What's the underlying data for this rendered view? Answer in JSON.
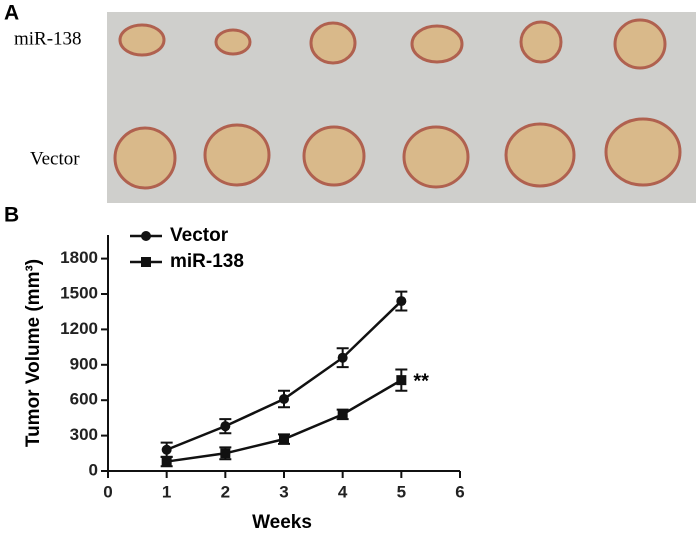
{
  "panel_a": {
    "label": "A",
    "row_labels": [
      "miR-138",
      "Vector"
    ]
  },
  "chart_data": {
    "type": "line",
    "panel_label": "B",
    "xlabel": "Weeks",
    "ylabel": "Tumor Volume (mm³)",
    "x": [
      1,
      2,
      3,
      4,
      5
    ],
    "series": [
      {
        "name": "Vector",
        "color": "#111111",
        "marker": "circle",
        "values": [
          180,
          380,
          610,
          960,
          1440
        ],
        "errors": [
          60,
          60,
          70,
          80,
          80
        ]
      },
      {
        "name": "miR-138",
        "color": "#111111",
        "marker": "square",
        "values": [
          80,
          150,
          270,
          480,
          770
        ],
        "errors": [
          40,
          50,
          40,
          40,
          90
        ]
      }
    ],
    "annotation": "**",
    "xlim": [
      0,
      6
    ],
    "xticks": [
      0,
      1,
      2,
      3,
      4,
      5,
      6
    ],
    "ylim": [
      0,
      2000
    ],
    "yticks": [
      0,
      300,
      600,
      900,
      1200,
      1500,
      1800
    ],
    "legend": "upper left"
  }
}
